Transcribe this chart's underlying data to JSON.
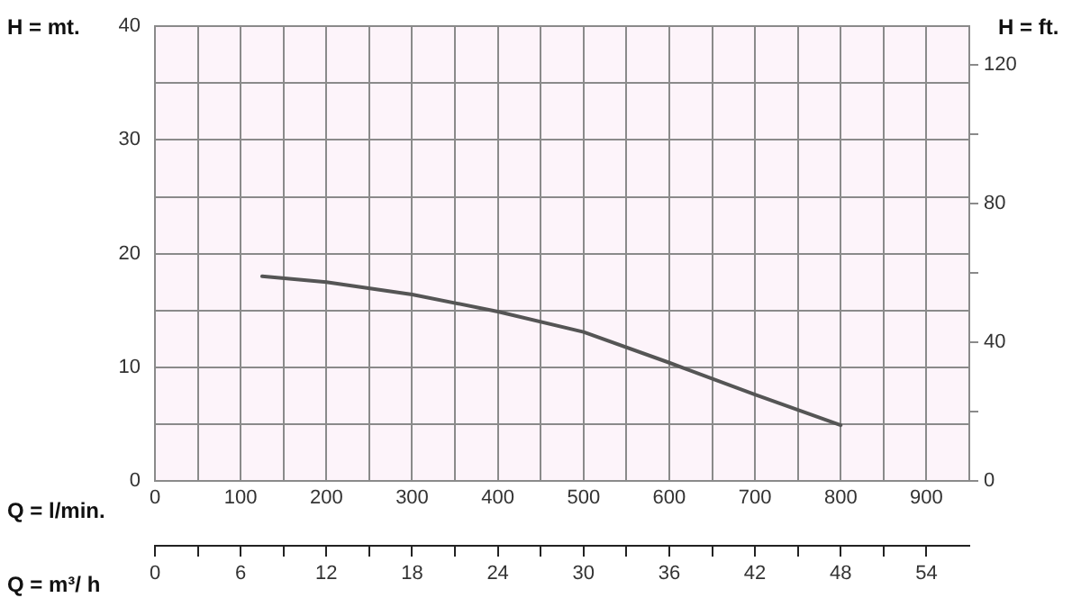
{
  "chart_data": {
    "type": "line",
    "ylabel": "H = mt.",
    "y2label": "H = ft.",
    "xlabel": "Q = l/min.",
    "x2label": "Q = m³/ h",
    "x": [
      125,
      200,
      300,
      400,
      500,
      600,
      700,
      800
    ],
    "values": [
      18,
      17.5,
      16.4,
      14.9,
      13.1,
      10.4,
      7.6,
      4.9
    ],
    "color": "#555555",
    "marker": "none",
    "line_style": "solid",
    "grid": true,
    "legend": false,
    "xlim": [
      0,
      950
    ],
    "xticks": [
      0,
      {
        "value": 50,
        "label": null
      },
      100,
      {
        "value": 150,
        "label": null
      },
      200,
      {
        "value": 250,
        "label": null
      },
      300,
      {
        "value": 350,
        "label": null
      },
      400,
      {
        "value": 450,
        "label": null
      },
      500,
      {
        "value": 550,
        "label": null
      },
      600,
      {
        "value": 650,
        "label": null
      },
      700,
      {
        "value": 750,
        "label": null
      },
      800,
      {
        "value": 850,
        "label": null
      },
      900
    ],
    "x2lim": [
      0,
      57
    ],
    "x2ticks": [
      0,
      {
        "value": 3,
        "label": null
      },
      6,
      {
        "value": 9,
        "label": null
      },
      12,
      {
        "value": 15,
        "label": null
      },
      18,
      {
        "value": 21,
        "label": null
      },
      24,
      {
        "value": 27,
        "label": null
      },
      30,
      {
        "value": 33,
        "label": null
      },
      36,
      {
        "value": 39,
        "label": null
      },
      42,
      {
        "value": 45,
        "label": null
      },
      48,
      {
        "value": 51,
        "label": null
      },
      54
    ],
    "ylim": [
      0,
      40
    ],
    "yticks": [
      0,
      {
        "value": 5,
        "label": null
      },
      10,
      {
        "value": 15,
        "label": null
      },
      20,
      {
        "value": 25,
        "label": null
      },
      30,
      {
        "value": 35,
        "label": null
      },
      40
    ],
    "y2lim": [
      0,
      131.2
    ],
    "y2ticks": [
      0,
      {
        "value": 20,
        "label": null
      },
      40,
      {
        "value": 60,
        "label": null
      },
      80,
      {
        "value": 100,
        "label": null
      },
      120
    ]
  }
}
